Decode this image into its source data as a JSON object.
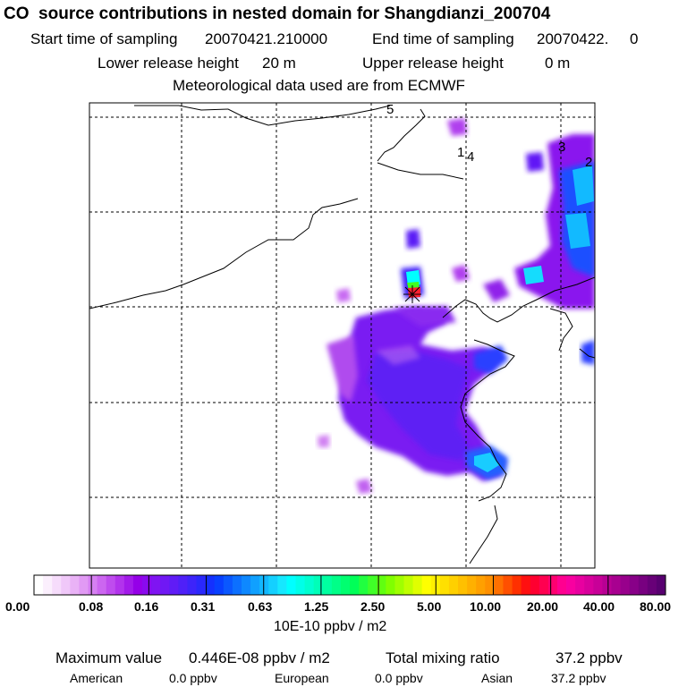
{
  "header": {
    "title": "CO  source contributions in nested domain for Shangdianzi_200704",
    "start_label": "Start time of sampling",
    "start_value": "20070421.210000",
    "end_label": "End time of sampling",
    "end_value": "20070422.     0",
    "lower_label": "Lower release height",
    "lower_value": "20 m",
    "upper_label": "Upper release height",
    "upper_value": "0 m",
    "met_line": "Meteorological data used are from ECMWF"
  },
  "chart_data": {
    "type": "heatmap",
    "title": "CO  source contributions in nested domain for Shangdianzi_200704",
    "grid": true,
    "map_labels": [
      "5",
      "1",
      "4",
      "3",
      "2"
    ],
    "colorbar": {
      "tick_labels": [
        "0.00",
        "0.08",
        "0.16",
        "0.31",
        "0.63",
        "1.25",
        "2.50",
        "5.00",
        "10.00",
        "20.00",
        "40.00",
        "80.00"
      ],
      "units": "10E-10 ppbv / m2",
      "colors": [
        "#ffffff",
        "#fbeffd",
        "#f6dcfb",
        "#f0c8f9",
        "#e9b2f6",
        "#e19af4",
        "#d680f2",
        "#cc66f0",
        "#bf4cee",
        "#b233ec",
        "#a31aea",
        "#9500e8",
        "#8a0aee",
        "#7f14f2",
        "#7018f4",
        "#601cf6",
        "#4f20f8",
        "#3d24fa",
        "#2a28fc",
        "#1430fe",
        "#0840ff",
        "#0a58ff",
        "#0c70ff",
        "#0e88ff",
        "#10a0ff",
        "#12b8ff",
        "#14d0ff",
        "#16e8ff",
        "#00ffff",
        "#00ffe8",
        "#00ffd0",
        "#00ffb8",
        "#00ffa0",
        "#00ff88",
        "#00ff70",
        "#00ff58",
        "#20ff40",
        "#40ff28",
        "#60ff10",
        "#80ff00",
        "#a0ff00",
        "#c0ff00",
        "#e0ff00",
        "#ffff00",
        "#fff000",
        "#ffe000",
        "#ffd000",
        "#ffc000",
        "#ffb000",
        "#ffa000",
        "#ff9000",
        "#ff7000",
        "#ff5000",
        "#ff3000",
        "#ff1010",
        "#ff0030",
        "#ff0050",
        "#ff0070",
        "#ff0090",
        "#f800a0",
        "#e800a0",
        "#d8009c",
        "#c80098",
        "#b80094",
        "#a80090",
        "#98008c",
        "#880088",
        "#780080",
        "#680078",
        "#580070"
      ]
    },
    "summary": {
      "max_label": "Maximum value",
      "max_value": "0.446E-08 ppbv / m2",
      "total_label": "Total mixing ratio",
      "total_value": "37.2 ppbv",
      "american_label": "American",
      "american_value": "0.0 ppbv",
      "european_label": "European",
      "european_value": "0.0 ppbv",
      "asian_label": "Asian",
      "asian_value": "37.2 ppbv"
    }
  }
}
